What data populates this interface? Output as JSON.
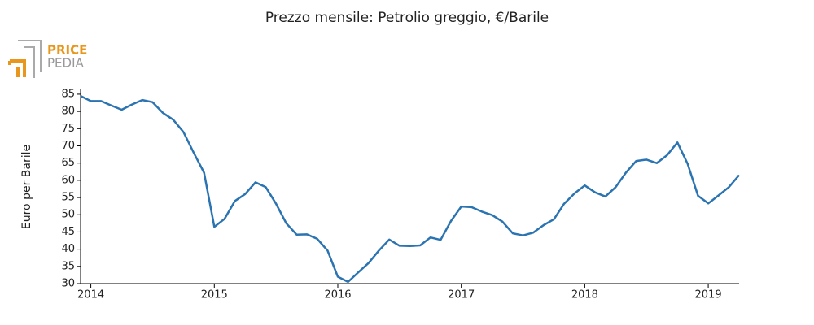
{
  "chart_data": {
    "type": "line",
    "title": "Prezzo mensile: Petrolio greggio, €/Barile",
    "logo": {
      "top": "PRICE",
      "bottom": "PEDIA"
    },
    "y_label": "Euro per Barile",
    "x": [
      2013.917,
      2014.0,
      2014.083,
      2014.167,
      2014.25,
      2014.333,
      2014.417,
      2014.5,
      2014.583,
      2014.667,
      2014.75,
      2014.833,
      2014.917,
      2015.0,
      2015.083,
      2015.167,
      2015.25,
      2015.333,
      2015.417,
      2015.5,
      2015.583,
      2015.667,
      2015.75,
      2015.833,
      2015.917,
      2016.0,
      2016.083,
      2016.167,
      2016.25,
      2016.333,
      2016.417,
      2016.5,
      2016.583,
      2016.667,
      2016.75,
      2016.833,
      2016.917,
      2017.0,
      2017.083,
      2017.167,
      2017.25,
      2017.333,
      2017.417,
      2017.5,
      2017.583,
      2017.667,
      2017.75,
      2017.833,
      2017.917,
      2018.0,
      2018.083,
      2018.167,
      2018.25,
      2018.333,
      2018.417,
      2018.5,
      2018.583,
      2018.667,
      2018.75,
      2018.833,
      2018.917,
      2019.0,
      2019.083,
      2019.167,
      2019.25
    ],
    "series": [
      {
        "name": "Petrolio greggio",
        "color": "#2b74b1",
        "values": [
          84.5,
          83,
          83,
          81.7,
          80.5,
          82,
          83.3,
          82.7,
          79.6,
          77.6,
          74,
          68,
          62.2,
          46.5,
          48.8,
          54,
          56,
          59.4,
          58,
          53.2,
          47.5,
          44.2,
          44.3,
          43,
          39.6,
          32,
          30.5,
          33.3,
          36,
          39.6,
          42.8,
          41,
          40.9,
          41.1,
          43.4,
          42.7,
          48.2,
          52.4,
          52.2,
          50.9,
          49.9,
          48,
          44.6,
          44,
          44.8,
          47,
          48.7,
          53.2,
          56.2,
          58.5,
          56.5,
          55.3,
          58,
          62.2,
          65.6,
          66,
          65,
          67.3,
          71,
          64.8,
          55.5,
          53.3,
          55.6,
          58,
          61.5
        ]
      }
    ],
    "xlim": [
      2013.917,
      2019.25
    ],
    "xticks": [
      2014,
      2015,
      2016,
      2017,
      2018,
      2019
    ],
    "ylim": [
      30,
      86.4
    ],
    "yticks": [
      30,
      35,
      40,
      45,
      50,
      55,
      60,
      65,
      70,
      75,
      80,
      85
    ],
    "grid": false
  }
}
